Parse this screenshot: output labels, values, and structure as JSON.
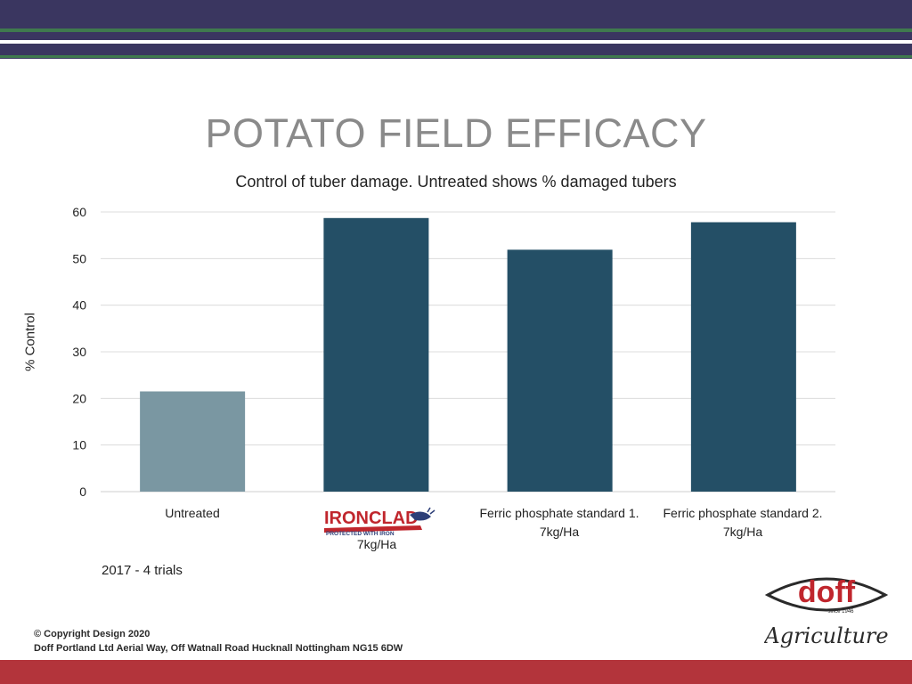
{
  "header": {
    "title": "POTATO FIELD EFFICACY",
    "subtitle": "Control of tuber damage.  Untreated shows % damaged tubers"
  },
  "chart_data": {
    "type": "bar",
    "title": "POTATO FIELD EFFICACY",
    "subtitle": "Control of tuber damage.  Untreated shows % damaged tubers",
    "ylabel": "% Control",
    "xlabel": "",
    "ylim": [
      0,
      60
    ],
    "yticks": [
      0,
      10,
      20,
      30,
      40,
      50,
      60
    ],
    "grid": true,
    "categories": [
      "Untreated",
      "IRONCLAD 7kg/Ha",
      "Ferric phosphate standard 1. 7kg/Ha",
      "Ferric phosphate standard 2. 7kg/Ha"
    ],
    "category_lines": [
      [
        "Untreated"
      ],
      [
        "7kg/Ha"
      ],
      [
        "Ferric phosphate standard 1.",
        "7kg/Ha"
      ],
      [
        "Ferric phosphate standard 2.",
        "7kg/Ha"
      ]
    ],
    "values": [
      21.5,
      58.7,
      51.9,
      57.8
    ],
    "bar_colors": [
      "#7a97a2",
      "#244f66",
      "#244f66",
      "#244f66"
    ]
  },
  "note": "2017 - 4 trials",
  "ironclad_logo": {
    "name": "IRONCLAD",
    "tagline": "PROTECTED WITH IRON"
  },
  "copyright": {
    "line1": "© Copyright Design 2020",
    "line2": "Doff Portland Ltd Aerial Way, Off Watnall Road Hucknall Nottingham NG15 6DW"
  },
  "doff_logo": {
    "brand": "doff",
    "since": "since 1946",
    "division": "Agriculture"
  },
  "colors": {
    "header_band": "#3a3660",
    "stripe_green": "#3f7a4e",
    "footer_band": "#b3343b",
    "bar_untreated": "#7a97a2",
    "bar_treated": "#244f66",
    "ironclad_red": "#c0262d",
    "ironclad_navy": "#2d3f78"
  }
}
